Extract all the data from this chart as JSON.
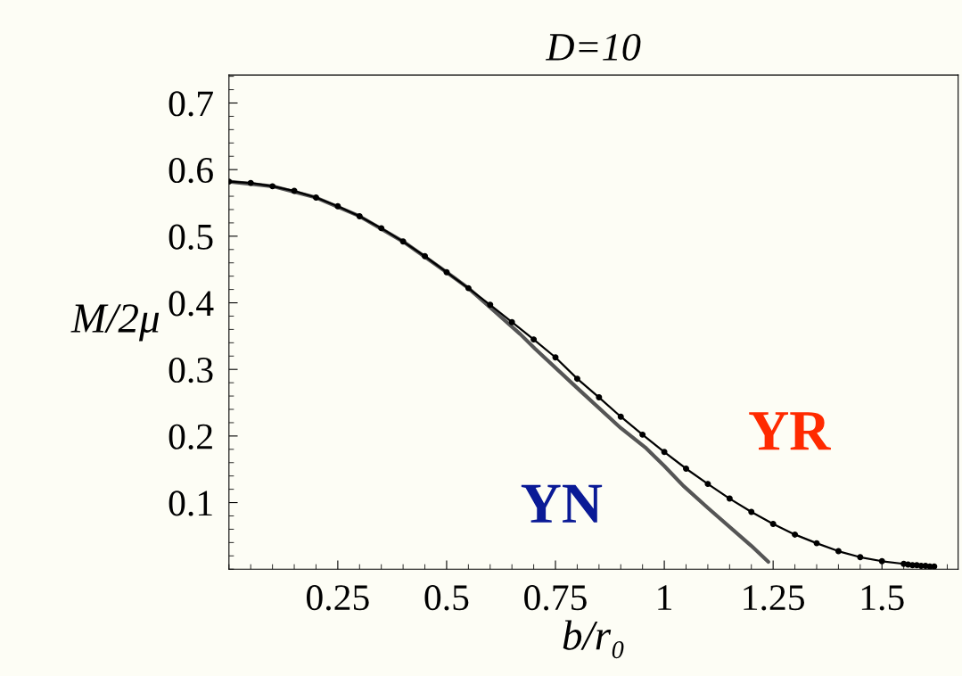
{
  "chart_data": {
    "type": "line",
    "title": "D=10",
    "xlabel": "b/r₀",
    "ylabel": "M/2μ",
    "xlim": [
      0,
      1.675
    ],
    "ylim": [
      0,
      0.742
    ],
    "xticks": [
      0.25,
      0.5,
      0.75,
      1,
      1.25,
      1.5
    ],
    "yticks": [
      0.1,
      0.2,
      0.3,
      0.4,
      0.5,
      0.6,
      0.7
    ],
    "grid": false,
    "legend": false,
    "series": [
      {
        "name": "YN",
        "color": "#555555",
        "marker": "none",
        "x": [
          0,
          0.1,
          0.2,
          0.3,
          0.4,
          0.5,
          0.55,
          0.6,
          0.669,
          0.703,
          0.8,
          0.9,
          0.956,
          1.0,
          1.044,
          1.1,
          1.2,
          1.239
        ],
        "values": [
          0.582,
          0.575,
          0.558,
          0.53,
          0.492,
          0.446,
          0.422,
          0.393,
          0.353,
          0.331,
          0.272,
          0.212,
          0.183,
          0.155,
          0.125,
          0.092,
          0.035,
          0.011
        ]
      },
      {
        "name": "YR",
        "color": "#000000",
        "marker": "circle",
        "x": [
          0,
          0.05,
          0.1,
          0.15,
          0.2,
          0.25,
          0.3,
          0.35,
          0.4,
          0.45,
          0.5,
          0.55,
          0.6,
          0.65,
          0.7,
          0.75,
          0.8,
          0.85,
          0.9,
          0.95,
          1.0,
          1.05,
          1.1,
          1.15,
          1.2,
          1.25,
          1.3,
          1.35,
          1.4,
          1.45,
          1.5,
          1.55,
          1.56,
          1.57,
          1.58,
          1.59,
          1.6,
          1.61,
          1.62
        ],
        "values": [
          0.582,
          0.58,
          0.575,
          0.568,
          0.558,
          0.545,
          0.53,
          0.512,
          0.492,
          0.47,
          0.446,
          0.422,
          0.397,
          0.371,
          0.345,
          0.318,
          0.286,
          0.258,
          0.229,
          0.202,
          0.176,
          0.151,
          0.128,
          0.106,
          0.086,
          0.068,
          0.052,
          0.039,
          0.027,
          0.018,
          0.012,
          0.008,
          0.007,
          0.006,
          0.006,
          0.005,
          0.005,
          0.004,
          0.004
        ]
      }
    ]
  }
}
